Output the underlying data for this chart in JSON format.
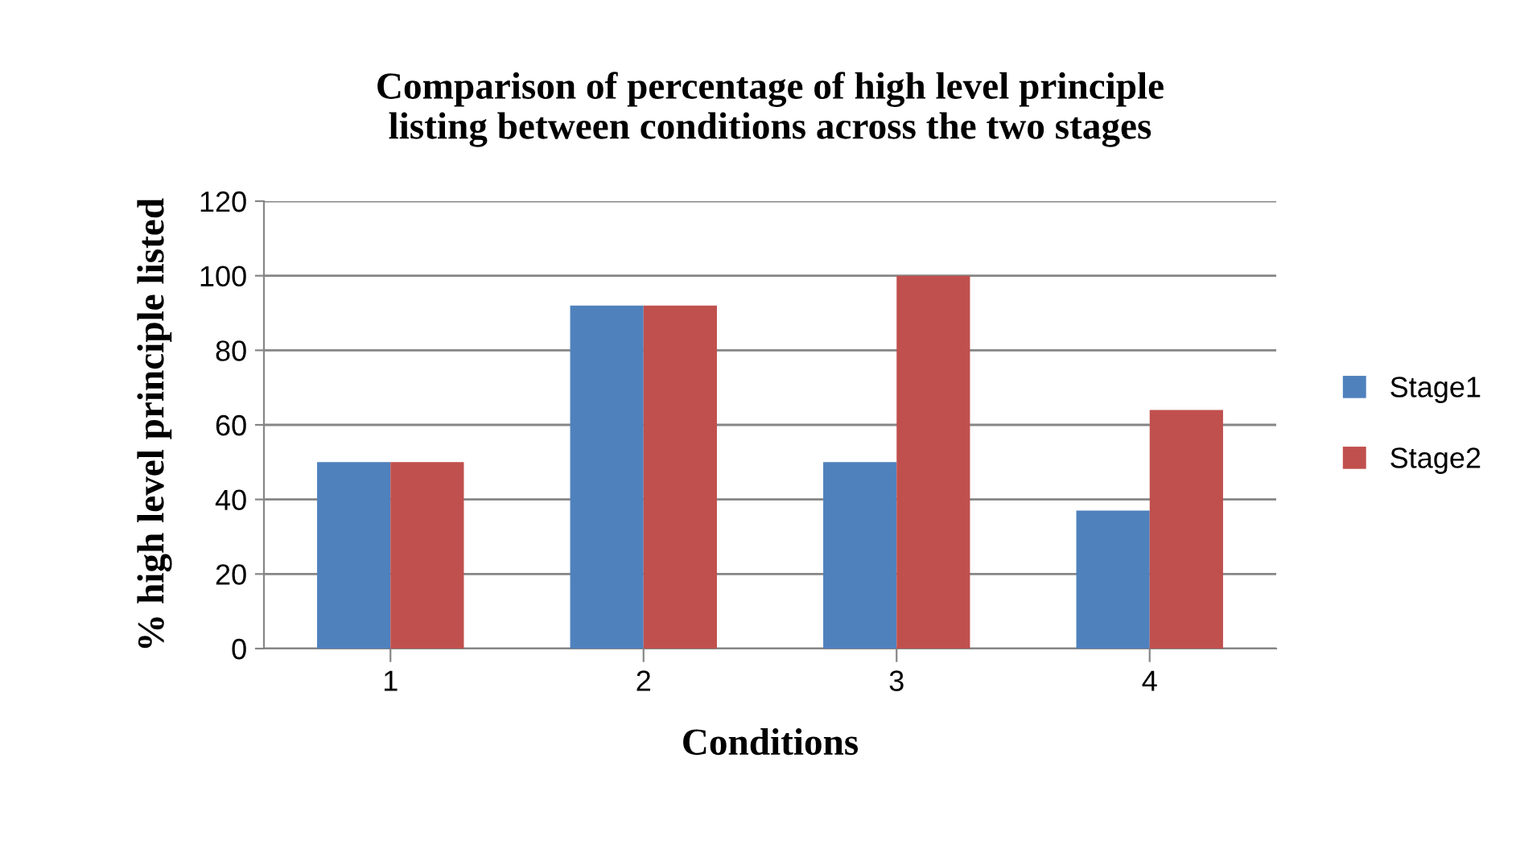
{
  "chart_data": {
    "type": "bar",
    "title": "Comparison of percentage of high level principle\nlisting between conditions across the two stages",
    "xlabel": "Conditions",
    "ylabel": "% high level principle listed",
    "categories": [
      "1",
      "2",
      "3",
      "4"
    ],
    "series": [
      {
        "name": "Stage1",
        "color": "#4f81bd",
        "values": [
          50,
          92,
          50,
          37
        ]
      },
      {
        "name": "Stage2",
        "color": "#c0504d",
        "values": [
          50,
          92,
          100,
          64
        ]
      }
    ],
    "ylim": [
      0,
      120
    ],
    "yticks": [
      0,
      20,
      40,
      60,
      80,
      100,
      120
    ],
    "grid": "y",
    "legend": "right"
  }
}
